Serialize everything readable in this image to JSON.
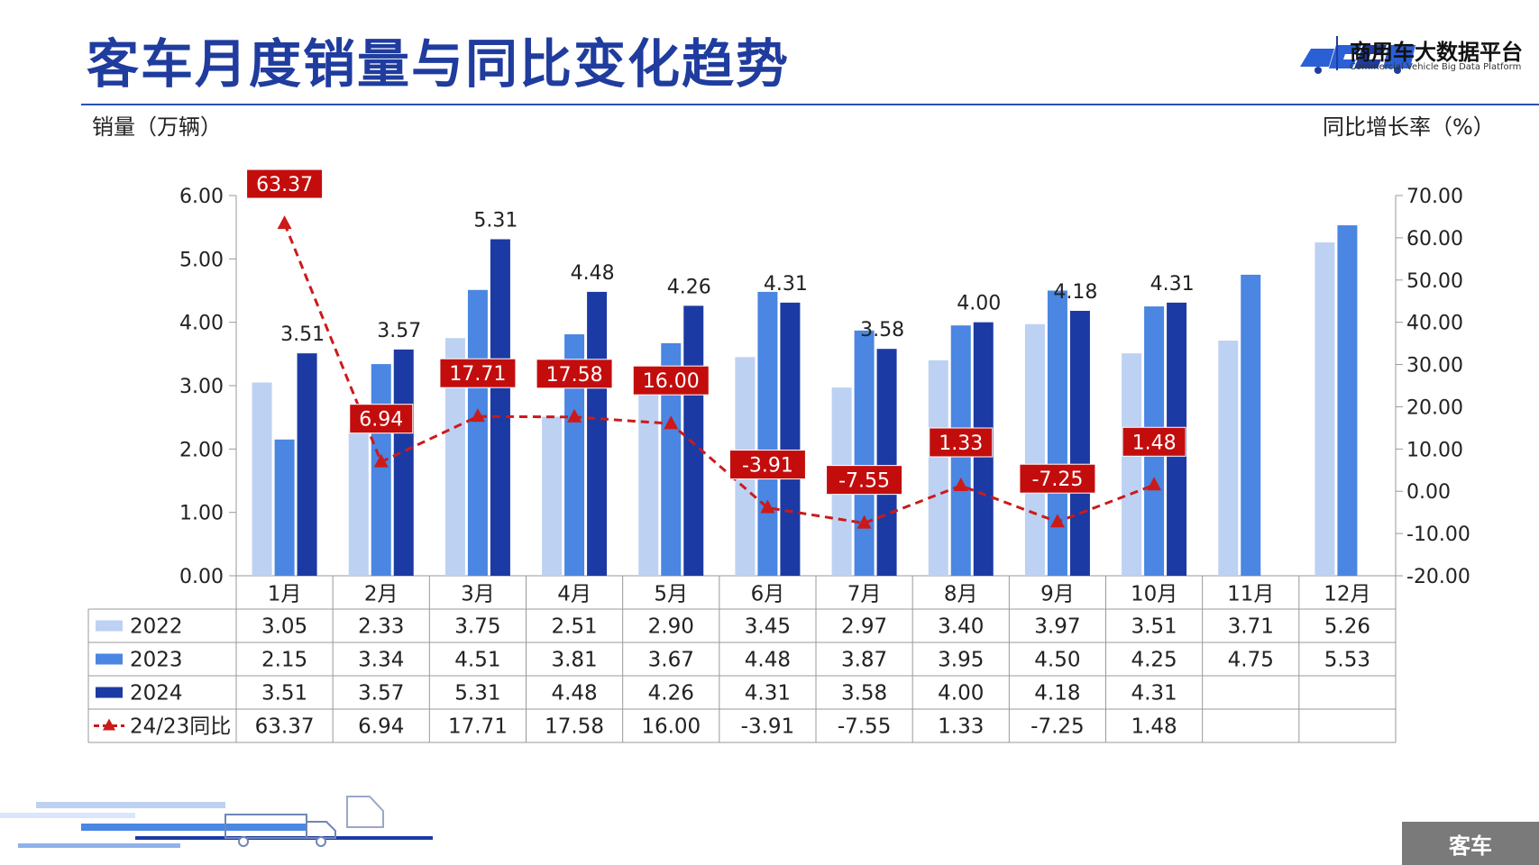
{
  "header": {
    "title": "客车月度销量与同比变化趋势",
    "logo_name": "商用车大数据平台",
    "logo_sub": "Commercial Vehicle Big Data Platform"
  },
  "footer": {
    "tag": "客车"
  },
  "colors": {
    "series_2022": "#bdd1f2",
    "series_2023": "#4a86e2",
    "series_2024": "#1c3aa3",
    "yoy_line": "#cc1a1a",
    "title": "#1f3c9e"
  },
  "chart_data": {
    "type": "bar",
    "ylabel": "销量（万辆）",
    "y2label": "同比增长率（%）",
    "ylim": [
      0,
      6
    ],
    "y2lim": [
      -20,
      70
    ],
    "yticks": [
      "0.00",
      "1.00",
      "2.00",
      "3.00",
      "4.00",
      "5.00",
      "6.00"
    ],
    "y2ticks": [
      "-20.00",
      "-10.00",
      "0.00",
      "10.00",
      "20.00",
      "30.00",
      "40.00",
      "50.00",
      "60.00",
      "70.00"
    ],
    "categories": [
      "1月",
      "2月",
      "3月",
      "4月",
      "5月",
      "6月",
      "7月",
      "8月",
      "9月",
      "10月",
      "11月",
      "12月"
    ],
    "series": [
      {
        "name": "2022",
        "values": [
          3.05,
          2.33,
          3.75,
          2.51,
          2.9,
          3.45,
          2.97,
          3.4,
          3.97,
          3.51,
          3.71,
          5.26
        ],
        "labels": [
          "3.05",
          "2.33",
          "3.75",
          "2.51",
          "2.90",
          "3.45",
          "2.97",
          "3.40",
          "3.97",
          "3.51",
          "3.71",
          "5.26"
        ]
      },
      {
        "name": "2023",
        "values": [
          2.15,
          3.34,
          4.51,
          3.81,
          3.67,
          4.48,
          3.87,
          3.95,
          4.5,
          4.25,
          4.75,
          5.53
        ],
        "labels": [
          "2.15",
          "3.34",
          "4.51",
          "3.81",
          "3.67",
          "4.48",
          "3.87",
          "3.95",
          "4.50",
          "4.25",
          "4.75",
          "5.53"
        ]
      },
      {
        "name": "2024",
        "values": [
          3.51,
          3.57,
          5.31,
          4.48,
          4.26,
          4.31,
          3.58,
          4.0,
          4.18,
          4.31,
          null,
          null
        ],
        "labels": [
          "3.51",
          "3.57",
          "5.31",
          "4.48",
          "4.26",
          "4.31",
          "3.58",
          "4.00",
          "4.18",
          "4.31",
          "",
          ""
        ]
      },
      {
        "name": "24/23同比",
        "type": "line",
        "axis": "right",
        "values": [
          63.37,
          6.94,
          17.71,
          17.58,
          16.0,
          -3.91,
          -7.55,
          1.33,
          -7.25,
          1.48,
          null,
          null
        ],
        "labels": [
          "63.37",
          "6.94",
          "17.71",
          "17.58",
          "16.00",
          "-3.91",
          "-7.55",
          "1.33",
          "-7.25",
          "1.48",
          "",
          ""
        ]
      }
    ],
    "legend": "table-bottom",
    "grid": false
  }
}
